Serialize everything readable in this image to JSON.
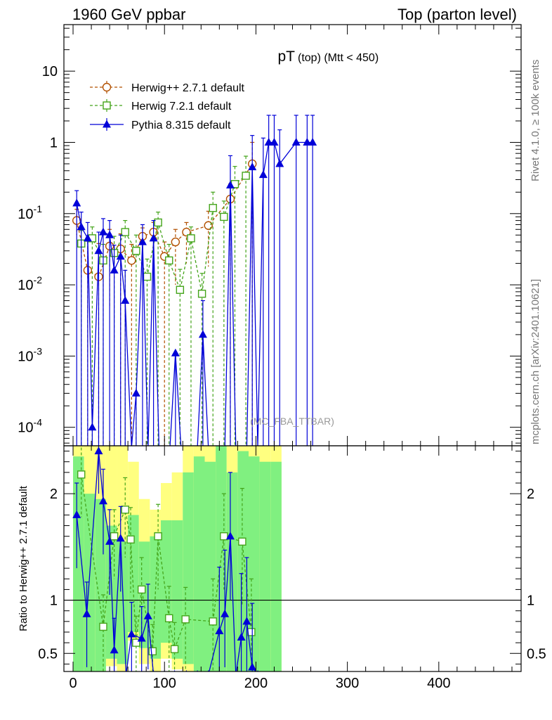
{
  "header": {
    "left": "1960 GeV ppbar",
    "right": "Top (parton level)"
  },
  "side_labels": {
    "rivet": "Rivet 4.1.0, ≥ 100k events",
    "mcplots": "mcplots.cern.ch [arXiv:2401.10621]"
  },
  "colors": {
    "herwigpp": "#b25000",
    "herwig7": "#44a41a",
    "pythia": "#0000d8",
    "band_yellow": "#ffff80",
    "band_green": "#80f080",
    "watermark": "#999999"
  },
  "chart_data": [
    {
      "type": "scatter",
      "title": "pT",
      "title_suffix": "(top) (Mtt < 450)",
      "watermark": "(MC_FBA_TTBAR)",
      "yscale": "log",
      "xlim": [
        -10,
        490
      ],
      "ylim": [
        5.5e-05,
        45
      ],
      "x_ticks": [
        0,
        100,
        200,
        300,
        400
      ],
      "y_ticks": [
        0.0001,
        0.001,
        0.01,
        0.1,
        1,
        10
      ],
      "y_tick_labels": [
        "10^-4",
        "10^-3",
        "10^-2",
        "10^-1",
        "1",
        "10"
      ],
      "legend_position": "top-left",
      "series": [
        {
          "name": "Herwig++ 2.7.1 default",
          "style": "dashed-open-circle",
          "x": [
            4,
            16,
            28,
            40,
            52,
            64,
            76,
            88,
            100,
            112,
            124,
            148,
            172,
            196
          ],
          "y": [
            0.08,
            0.016,
            0.013,
            0.035,
            0.032,
            0.022,
            0.048,
            0.055,
            0.025,
            0.04,
            0.055,
            0.068,
            0.16,
            0.5
          ],
          "err_up": [
            0.035,
            0.025,
            0.025,
            0.025,
            0.02,
            0.015,
            0.015,
            0.02,
            0.015,
            0.02,
            0.02,
            0.04,
            0.1,
            0.5
          ],
          "err_down": [
            0.03,
            0.016,
            0.013,
            0.03,
            0.032,
            0.022,
            0.03,
            0.03,
            0.025,
            0.03,
            0.035,
            0.05,
            0.16,
            0.5
          ]
        },
        {
          "name": "Herwig 7.2.1 default",
          "style": "dashed-open-square",
          "x": [
            9,
            21,
            33,
            45,
            57,
            69,
            81,
            93,
            105,
            117,
            129,
            141,
            153,
            165,
            177,
            189
          ],
          "y": [
            0.038,
            0.045,
            0.022,
            0.028,
            0.055,
            0.03,
            0.013,
            0.075,
            0.022,
            0.0085,
            0.045,
            0.0075,
            0.12,
            0.09,
            0.26,
            0.34
          ],
          "err_up": [
            0.02,
            0.02,
            0.015,
            0.02,
            0.025,
            0.02,
            0.01,
            0.03,
            0.015,
            0.008,
            0.02,
            0.007,
            0.08,
            0.06,
            0.2,
            0.3
          ],
          "err_down": [
            0.038,
            0.045,
            0.022,
            0.028,
            0.055,
            0.03,
            0.013,
            0.075,
            0.022,
            0.0085,
            0.045,
            0.0075,
            0.12,
            0.09,
            0.26,
            0.34
          ]
        },
        {
          "name": "Pythia 8.315 default",
          "style": "solid-filled-triangle",
          "x": [
            4,
            9,
            16,
            21,
            28,
            33,
            40,
            45,
            52,
            57,
            64,
            69,
            76,
            82,
            88,
            94,
            99,
            106,
            112,
            118,
            124,
            130,
            136,
            142,
            148,
            154,
            160,
            166,
            172,
            178,
            184,
            190,
            196,
            202,
            208,
            214,
            220,
            226,
            244,
            256,
            262
          ],
          "y": [
            0.14,
            0.065,
            0.045,
            0.0001,
            0.03,
            0.055,
            0.05,
            0.016,
            0.025,
            0.006,
            0.0,
            0.0003,
            0.04,
            0.0,
            0.045,
            0.0,
            0.0,
            0.0,
            0.0011,
            0.0,
            0.0,
            0.0,
            0.0,
            0.002,
            0.0,
            0.0,
            0.0,
            0.0,
            0.25,
            0.0,
            0.0,
            0.0,
            0.45,
            0.0,
            0.35,
            1.0,
            1.0,
            0.5,
            1.0,
            1.0,
            1.0
          ],
          "err_up": [
            0.07,
            0.04,
            0.03,
            0.0,
            0.025,
            0.03,
            0.03,
            0.02,
            0.025,
            0.01,
            0.0,
            0.0,
            0.03,
            0.0,
            0.035,
            0.0,
            0.0,
            0.0,
            0.0,
            0.0,
            0.0,
            0.0,
            0.0,
            0.004,
            0.0,
            0.0,
            0.0,
            0.0,
            0.4,
            0.0,
            0.0,
            0.0,
            0.8,
            0.0,
            0.8,
            1.4,
            1.4,
            1.0,
            1.4,
            1.4,
            1.4
          ],
          "err_down": [
            0.14,
            0.065,
            0.045,
            0.0001,
            0.03,
            0.055,
            0.05,
            0.016,
            0.025,
            0.006,
            0.0,
            0.0003,
            0.04,
            0.0,
            0.045,
            0.0,
            0.0,
            0.0,
            0.0011,
            0.0,
            0.0,
            0.0,
            0.0,
            0.002,
            0.0,
            0.0,
            0.0,
            0.0,
            0.25,
            0.0,
            0.0,
            0.0,
            0.45,
            0.0,
            0.35,
            1.0,
            1.0,
            0.5,
            1.0,
            1.0,
            1.0
          ]
        }
      ]
    },
    {
      "type": "scatter",
      "ylabel": "Ratio to Herwig++ 2.7.1 default",
      "xlim": [
        -10,
        490
      ],
      "ylim": [
        0.33,
        2.45
      ],
      "x_ticks": [
        0,
        100,
        200,
        300,
        400
      ],
      "x_tick_labels": [
        "0",
        "100",
        "200",
        "300",
        "400"
      ],
      "y_ticks": [
        0.5,
        1,
        2
      ],
      "y_tick_labels": [
        "0.5",
        "1",
        "2"
      ],
      "reference_line": 1,
      "bands": {
        "x": [
          0,
          12,
          24,
          36,
          48,
          60,
          72,
          84,
          96,
          108,
          120,
          132,
          144,
          156,
          168,
          180,
          192,
          204,
          216
        ],
        "width": 12,
        "yellow_lo": [
          0.3,
          0.3,
          0.3,
          0.38,
          0.3,
          0.62,
          0.4,
          0.3,
          0.45,
          0.35,
          0.3,
          0.3,
          0.3,
          0.3,
          0.3,
          0.3,
          0.3,
          0.3,
          0.3
        ],
        "yellow_hi": [
          2.5,
          2.5,
          2.5,
          2.5,
          2.5,
          2.3,
          1.95,
          1.85,
          2.1,
          2.2,
          2.5,
          2.5,
          2.5,
          2.5,
          2.5,
          2.5,
          2.5,
          2.5,
          2.5
        ],
        "green_lo": [
          0.3,
          0.3,
          0.3,
          0.45,
          0.4,
          0.7,
          0.55,
          0.45,
          0.6,
          0.45,
          0.4,
          0.3,
          0.3,
          0.3,
          0.3,
          0.3,
          0.3,
          0.3,
          0.3
        ],
        "green_hi": [
          2.35,
          2.0,
          1.95,
          1.7,
          1.55,
          1.8,
          1.55,
          1.6,
          1.75,
          1.75,
          2.2,
          2.35,
          2.3,
          2.45,
          2.2,
          2.4,
          2.35,
          2.3,
          2.3
        ]
      },
      "series": [
        {
          "name": "Herwig 7.2.1 default",
          "style": "dashed-open-square",
          "x": [
            9,
            33,
            45,
            57,
            63,
            69,
            75,
            87,
            93,
            105,
            111,
            123,
            153,
            165,
            185,
            195
          ],
          "y": [
            2.18,
            0.75,
            1.6,
            1.85,
            1.57,
            0.6,
            1.1,
            0.52,
            1.6,
            0.83,
            0.54,
            0.82,
            0.8,
            1.6,
            1.55,
            0.7
          ],
          "err_up": [
            0.3,
            0.3,
            0.25,
            0.3,
            0.3,
            0.25,
            0.3,
            0.25,
            0.3,
            0.3,
            0.25,
            0.3,
            0.4,
            0.4,
            0.5,
            0.5
          ],
          "err_down": [
            0.4,
            0.45,
            0.4,
            0.45,
            0.5,
            0.3,
            0.5,
            0.2,
            0.5,
            0.5,
            0.25,
            0.5,
            0.5,
            0.5,
            0.6,
            0.4
          ]
        },
        {
          "name": "Pythia 8.315 default",
          "style": "solid-filled-triangle",
          "x": [
            4,
            15,
            28,
            33,
            40,
            45,
            52,
            58,
            64,
            75,
            82,
            88,
            100,
            111,
            124,
            136,
            148,
            160,
            166,
            172,
            178,
            184,
            190,
            196,
            202
          ],
          "y": [
            1.8,
            0.87,
            2.4,
            1.93,
            1.55,
            0.53,
            1.58,
            0.3,
            0.68,
            0.64,
            0.85,
            0.3,
            0.3,
            0.3,
            0.3,
            0.3,
            0.3,
            0.71,
            0.87,
            1.6,
            0.3,
            0.65,
            0.8,
            0.37,
            0.3
          ],
          "err_up": [
            0.3,
            0.3,
            0.3,
            0.3,
            0.3,
            0.3,
            0.3,
            0.0,
            0.3,
            0.3,
            0.3,
            0.0,
            0.0,
            0.0,
            0.0,
            0.0,
            0.0,
            0.6,
            0.6,
            0.6,
            0.0,
            0.6,
            0.6,
            0.6,
            0.0
          ],
          "err_down": [
            0.5,
            0.5,
            0.4,
            0.5,
            0.5,
            0.3,
            0.5,
            0.0,
            0.4,
            0.4,
            0.5,
            0.0,
            0.0,
            0.0,
            0.0,
            0.0,
            0.0,
            0.4,
            0.5,
            0.6,
            0.0,
            0.35,
            0.5,
            0.07,
            0.0
          ]
        }
      ]
    }
  ]
}
